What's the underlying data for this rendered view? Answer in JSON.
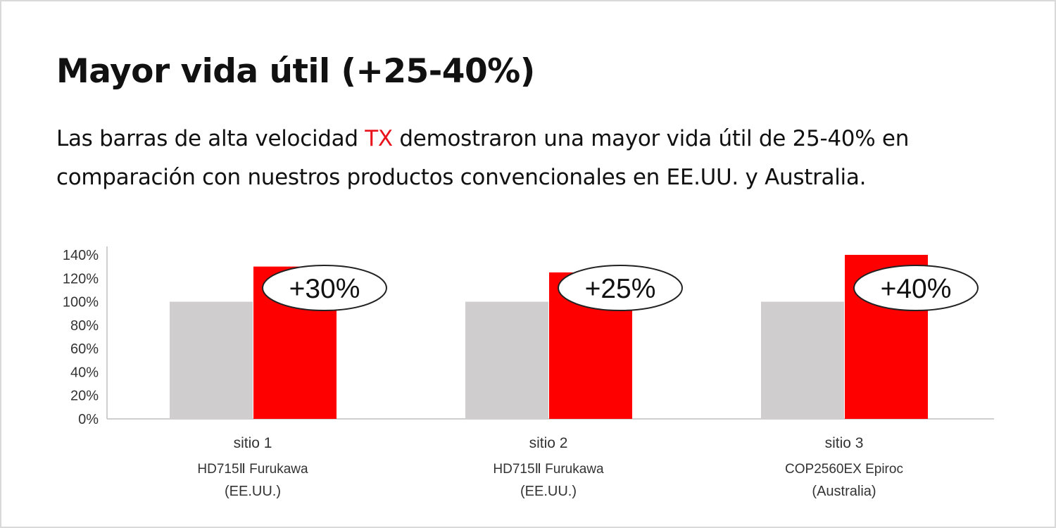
{
  "header": {
    "title": "Mayor vida útil (+25-40%)",
    "subtitle_before": "Las barras de alta velocidad ",
    "subtitle_highlight": "TX",
    "subtitle_after": " demostraron una mayor vida útil de 25-40% en comparación con nuestros productos convencionales en EE.UU. y Australia."
  },
  "colors": {
    "conventional": "#cfcdcd",
    "tx": "#ff0000",
    "accent_text": "#e8131b",
    "axis": "#bfbfbf",
    "text": "#111111"
  },
  "chart_data": {
    "type": "bar",
    "categories": [
      {
        "line1": "sitio 1",
        "line2": "HD715Ⅱ Furukawa",
        "line3": "(EE.UU.)"
      },
      {
        "line1": "sitio 2",
        "line2": "HD715Ⅱ Furukawa",
        "line3": "(EE.UU.)"
      },
      {
        "line1": "sitio 3",
        "line2": "COP2560EX Epiroc",
        "line3": "(Australia)"
      }
    ],
    "series": [
      {
        "color": "#cfcdcd",
        "values": [
          100,
          100,
          100
        ]
      },
      {
        "color": "#ff0000",
        "values": [
          130,
          125,
          140
        ]
      }
    ],
    "annotations": [
      "+30%",
      "+25%",
      "+40%"
    ],
    "yticks": [
      "0%",
      "20%",
      "40%",
      "60%",
      "80%",
      "100%",
      "120%",
      "140%"
    ],
    "ylim": [
      0,
      140
    ],
    "grid": false,
    "legend": "none"
  }
}
